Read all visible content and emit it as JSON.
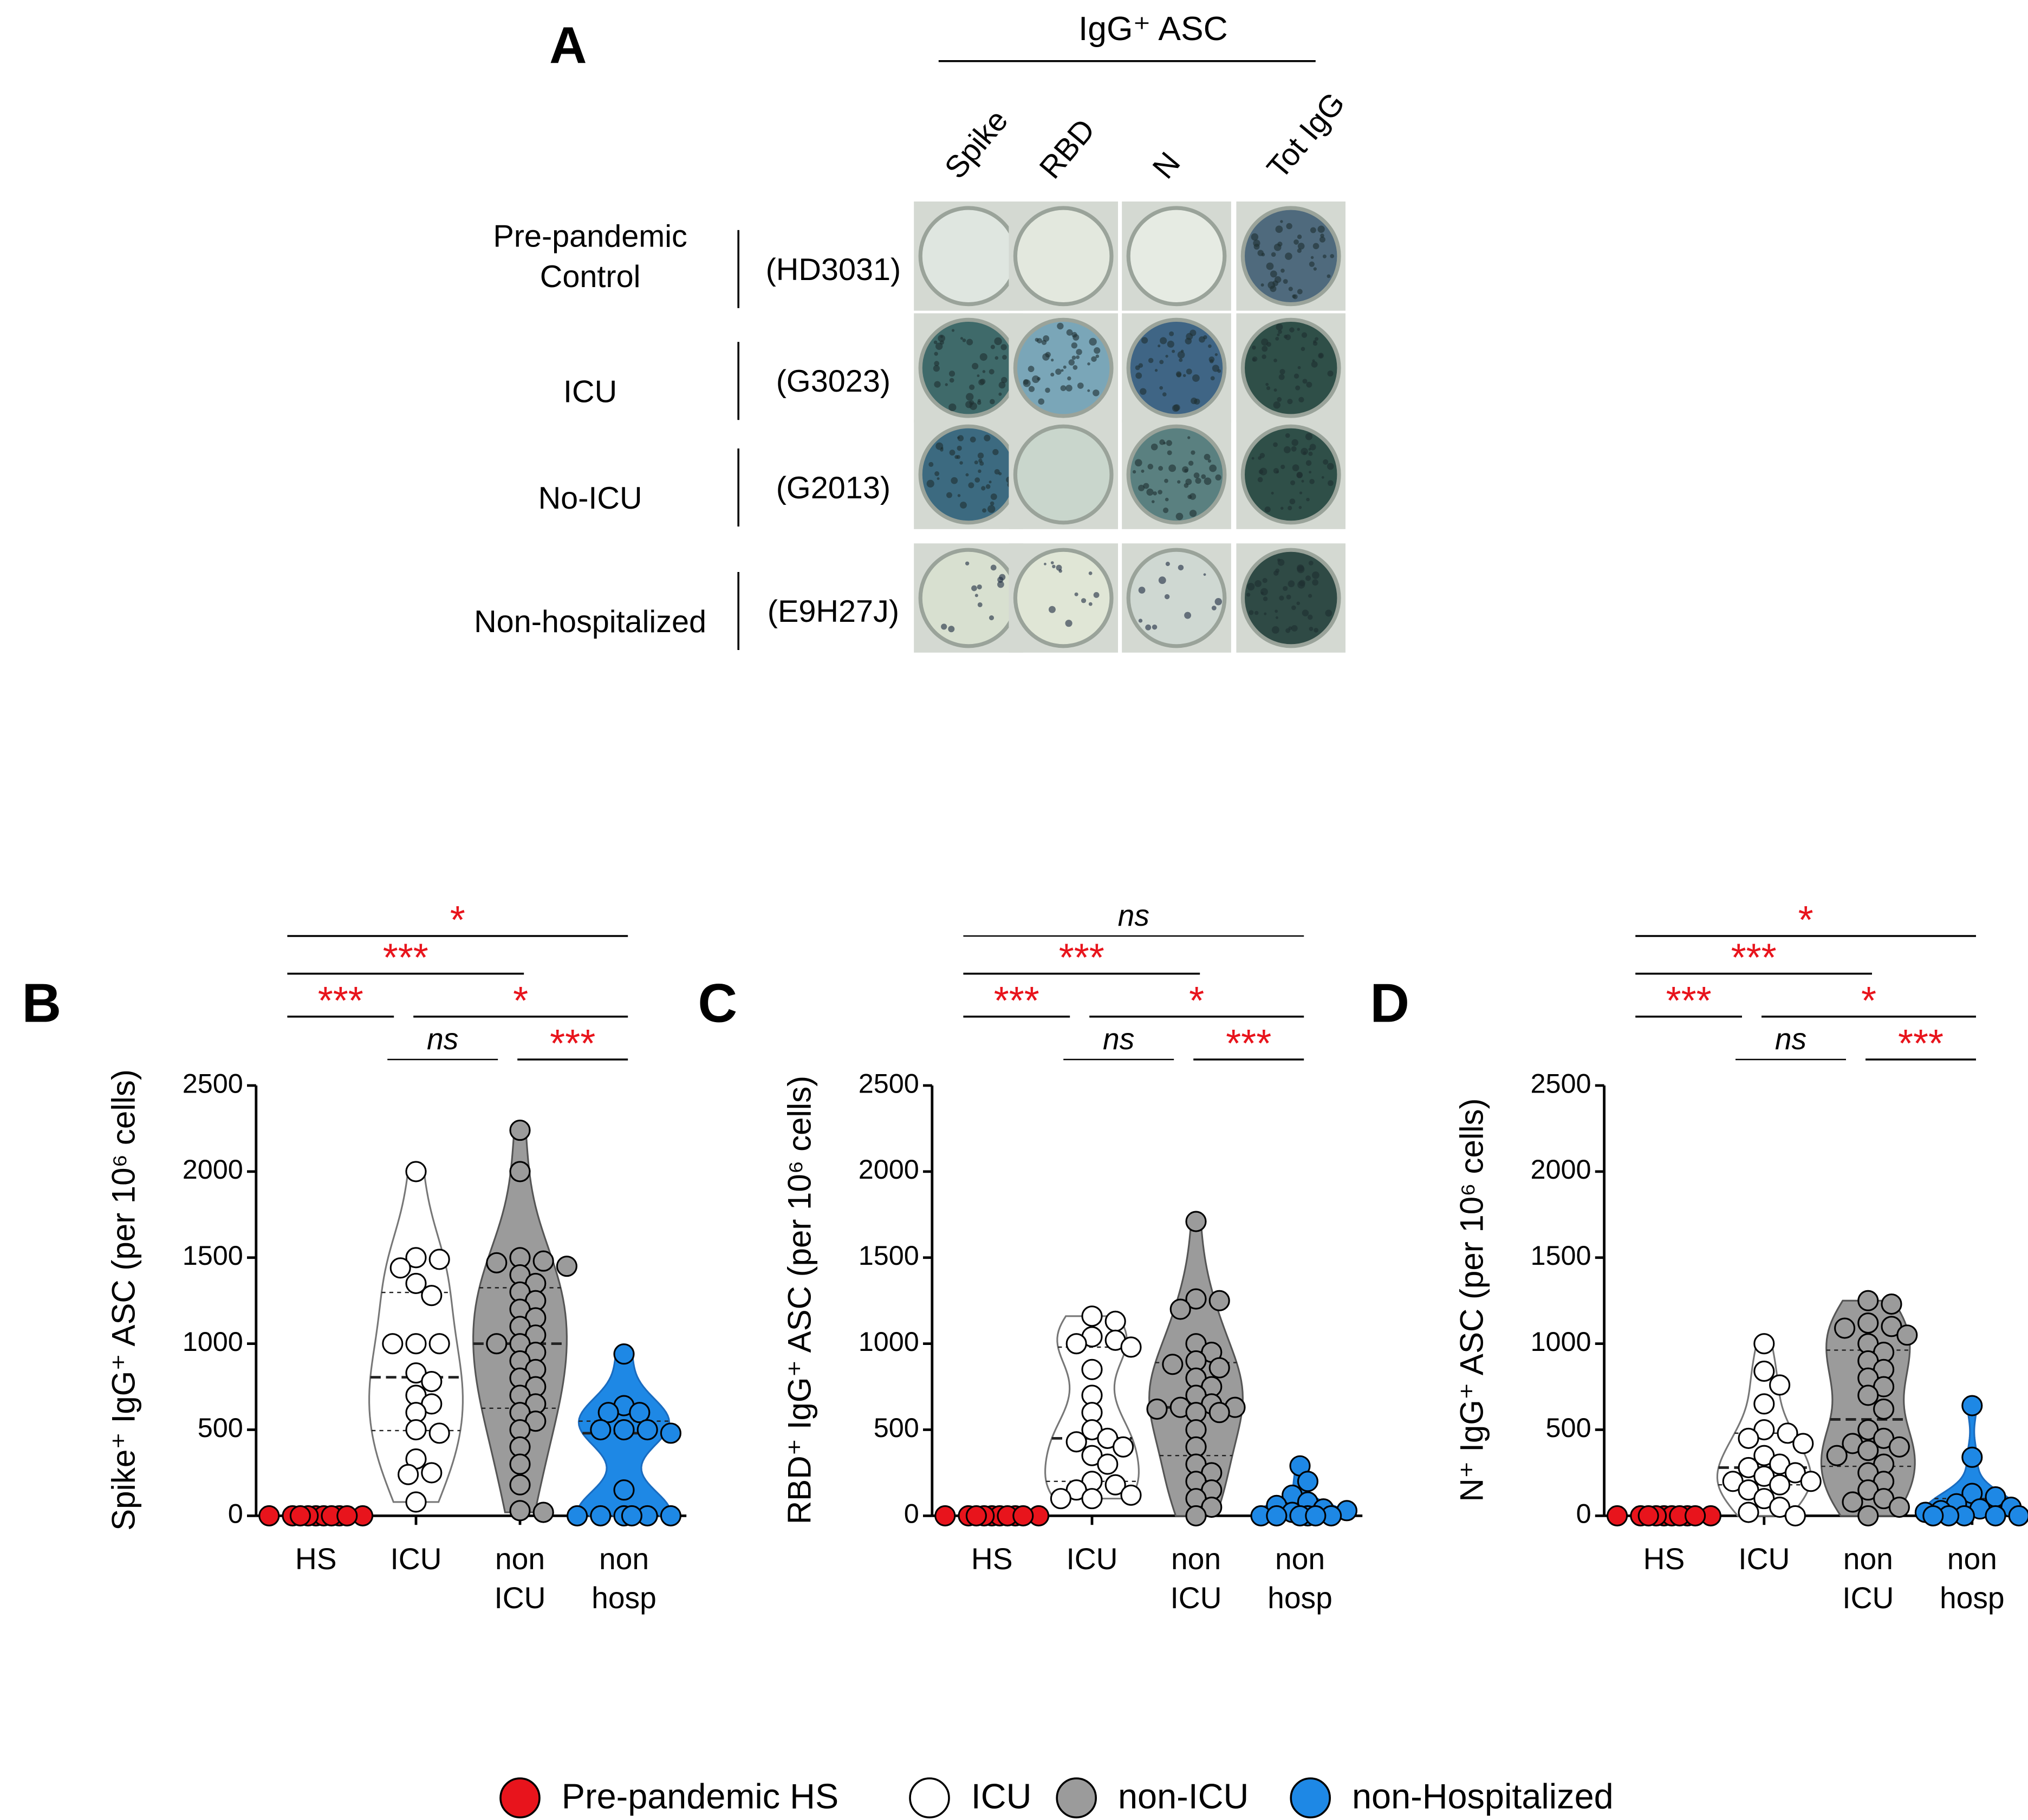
{
  "panel_a": {
    "letter": "A",
    "group_label": "IgG⁺ ASC",
    "columns": [
      "Spike",
      "RBD",
      "N",
      "Tot IgG"
    ],
    "rows": [
      {
        "label": [
          "Pre-pandemic",
          "Control"
        ],
        "id": "(HD3031)"
      },
      {
        "label": [
          "ICU"
        ],
        "id": "(G3023)"
      },
      {
        "label": [
          "No-ICU"
        ],
        "id": "(G2013)"
      },
      {
        "label": [
          "Non-hospitalized"
        ],
        "id": "(E9H27J)"
      }
    ]
  },
  "chart_data": [
    {
      "type": "violin",
      "panel": "B",
      "ylabel": "Spike⁺ IgG⁺ ASC (per 10⁶ cells)",
      "categories": [
        [
          "HS"
        ],
        [
          "ICU"
        ],
        [
          "non",
          "ICU"
        ],
        [
          "non",
          "hosp"
        ]
      ],
      "ylim": [
        0,
        2500
      ],
      "yticks": [
        0,
        500,
        1000,
        1500,
        2000,
        2500
      ],
      "series": [
        {
          "name": "Pre-pandemic HS",
          "color": "#e8141c",
          "values": [
            0,
            0,
            0,
            0,
            0,
            0,
            0,
            0,
            0,
            0
          ]
        },
        {
          "name": "ICU",
          "color": "#ffffff",
          "values": [
            2000,
            1500,
            1490,
            1440,
            1350,
            1280,
            1000,
            1000,
            1000,
            830,
            780,
            700,
            650,
            600,
            500,
            480,
            330,
            250,
            240,
            80
          ]
        },
        {
          "name": "non-ICU",
          "color": "#9b9b9b",
          "values": [
            2240,
            2000,
            1500,
            1480,
            1470,
            1450,
            1400,
            1350,
            1300,
            1250,
            1200,
            1150,
            1100,
            1050,
            1000,
            1000,
            950,
            900,
            850,
            800,
            750,
            700,
            650,
            600,
            550,
            500,
            400,
            300,
            180,
            20,
            30
          ]
        },
        {
          "name": "non-Hospitalized",
          "color": "#1e88e5",
          "values": [
            940,
            640,
            600,
            600,
            500,
            500,
            500,
            480,
            150,
            0,
            0,
            0,
            0,
            0,
            0
          ]
        }
      ],
      "comparisons": [
        {
          "groups": [
            0,
            3
          ],
          "label": "*",
          "color": "#e8141c"
        },
        {
          "groups": [
            0,
            2
          ],
          "label": "***",
          "color": "#e8141c"
        },
        {
          "groups": [
            0,
            1
          ],
          "label": "***",
          "color": "#e8141c"
        },
        {
          "groups": [
            1,
            3
          ],
          "label": "*",
          "color": "#e8141c"
        },
        {
          "groups": [
            1,
            2
          ],
          "label": "ns",
          "color": "#000000",
          "italic": true
        },
        {
          "groups": [
            2,
            3
          ],
          "label": "***",
          "color": "#e8141c"
        }
      ]
    },
    {
      "type": "violin",
      "panel": "C",
      "ylabel": "RBD⁺ IgG⁺ ASC (per 10⁶ cells)",
      "categories": [
        [
          "HS"
        ],
        [
          "ICU"
        ],
        [
          "non",
          "ICU"
        ],
        [
          "non",
          "hosp"
        ]
      ],
      "ylim": [
        0,
        2500
      ],
      "yticks": [
        0,
        500,
        1000,
        1500,
        2000,
        2500
      ],
      "series": [
        {
          "color": "#e8141c",
          "values": [
            0,
            0,
            0,
            0,
            0,
            0,
            0,
            0,
            0,
            0
          ]
        },
        {
          "color": "#ffffff",
          "values": [
            1160,
            1130,
            1040,
            1020,
            1000,
            980,
            850,
            700,
            600,
            500,
            450,
            430,
            400,
            350,
            300,
            200,
            180,
            150,
            120,
            100,
            100
          ]
        },
        {
          "color": "#9b9b9b",
          "values": [
            1710,
            1260,
            1250,
            1200,
            1000,
            950,
            900,
            880,
            860,
            800,
            750,
            700,
            650,
            630,
            630,
            620,
            600,
            600,
            500,
            400,
            300,
            250,
            200,
            150,
            100,
            50,
            0
          ]
        },
        {
          "color": "#1e88e5",
          "values": [
            290,
            200,
            120,
            80,
            60,
            40,
            30,
            20,
            0,
            0,
            0,
            0,
            0,
            0
          ]
        }
      ],
      "comparisons": [
        {
          "groups": [
            0,
            3
          ],
          "label": "ns",
          "color": "#000000",
          "italic": true
        },
        {
          "groups": [
            0,
            2
          ],
          "label": "***",
          "color": "#e8141c"
        },
        {
          "groups": [
            0,
            1
          ],
          "label": "***",
          "color": "#e8141c"
        },
        {
          "groups": [
            1,
            3
          ],
          "label": "*",
          "color": "#e8141c"
        },
        {
          "groups": [
            1,
            2
          ],
          "label": "ns",
          "color": "#000000",
          "italic": true
        },
        {
          "groups": [
            2,
            3
          ],
          "label": "***",
          "color": "#e8141c"
        }
      ]
    },
    {
      "type": "violin",
      "panel": "D",
      "ylabel": "N⁺ IgG⁺ ASC (per 10⁶ cells)",
      "categories": [
        [
          "HS"
        ],
        [
          "ICU"
        ],
        [
          "non",
          "ICU"
        ],
        [
          "non",
          "hosp"
        ]
      ],
      "ylim": [
        0,
        2500
      ],
      "yticks": [
        0,
        500,
        1000,
        1500,
        2000,
        2500
      ],
      "series": [
        {
          "color": "#e8141c",
          "values": [
            0,
            0,
            0,
            0,
            0,
            0,
            0,
            0,
            0,
            0
          ]
        },
        {
          "color": "#ffffff",
          "values": [
            1000,
            840,
            760,
            650,
            500,
            480,
            450,
            420,
            350,
            300,
            280,
            250,
            230,
            200,
            200,
            180,
            150,
            100,
            50,
            20,
            0
          ]
        },
        {
          "color": "#9b9b9b",
          "values": [
            1250,
            1230,
            1120,
            1100,
            1090,
            1050,
            1000,
            950,
            900,
            850,
            800,
            750,
            700,
            620,
            500,
            450,
            420,
            400,
            380,
            350,
            300,
            250,
            200,
            150,
            100,
            80,
            50,
            0
          ]
        },
        {
          "color": "#1e88e5",
          "values": [
            640,
            340,
            130,
            110,
            70,
            50,
            40,
            30,
            20,
            0,
            0,
            0,
            0,
            0
          ]
        }
      ],
      "comparisons": [
        {
          "groups": [
            0,
            3
          ],
          "label": "*",
          "color": "#e8141c"
        },
        {
          "groups": [
            0,
            2
          ],
          "label": "***",
          "color": "#e8141c"
        },
        {
          "groups": [
            0,
            1
          ],
          "label": "***",
          "color": "#e8141c"
        },
        {
          "groups": [
            1,
            3
          ],
          "label": "*",
          "color": "#e8141c"
        },
        {
          "groups": [
            1,
            2
          ],
          "label": "ns",
          "color": "#000000",
          "italic": true
        },
        {
          "groups": [
            2,
            3
          ],
          "label": "***",
          "color": "#e8141c"
        }
      ]
    }
  ]
}
